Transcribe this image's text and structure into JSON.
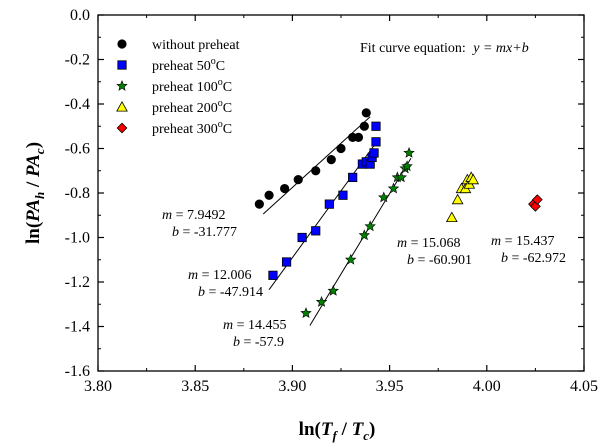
{
  "chart_data": {
    "type": "scatter",
    "xlim": [
      3.8,
      4.05
    ],
    "ylim": [
      -1.6,
      0.0
    ],
    "x_ticks": [
      "3.80",
      "3.85",
      "3.90",
      "3.95",
      "4.00",
      "4.05"
    ],
    "y_ticks": [
      "0.0",
      "-0.2",
      "-0.4",
      "-0.6",
      "-0.8",
      "-1.0",
      "-1.2",
      "-1.4",
      "-1.6"
    ],
    "equation_label": "Fit curve equation:",
    "equation_formula": "y = mx+b",
    "grid": false,
    "legend_position": "top-left",
    "series": [
      {
        "name": "without preheat",
        "marker": "circle",
        "color": "#000000",
        "points": [
          [
            3.883,
            -0.85
          ],
          [
            3.888,
            -0.81
          ],
          [
            3.896,
            -0.78
          ],
          [
            3.903,
            -0.74
          ],
          [
            3.912,
            -0.7
          ],
          [
            3.92,
            -0.65
          ],
          [
            3.925,
            -0.6
          ],
          [
            3.931,
            -0.55
          ],
          [
            3.934,
            -0.55
          ],
          [
            3.937,
            -0.5
          ],
          [
            3.938,
            -0.44
          ]
        ],
        "fit": {
          "m": "7.9492",
          "b": "-31.777",
          "x_range": [
            3.885,
            3.94
          ]
        }
      },
      {
        "name": "preheat 50°C",
        "marker": "square",
        "color": "#0000ff",
        "points": [
          [
            3.89,
            -1.17
          ],
          [
            3.897,
            -1.11
          ],
          [
            3.905,
            -1.0
          ],
          [
            3.912,
            -0.97
          ],
          [
            3.919,
            -0.85
          ],
          [
            3.926,
            -0.81
          ],
          [
            3.931,
            -0.73
          ],
          [
            3.936,
            -0.67
          ],
          [
            3.938,
            -0.66
          ],
          [
            3.94,
            -0.67
          ],
          [
            3.941,
            -0.64
          ],
          [
            3.942,
            -0.62
          ],
          [
            3.943,
            -0.57
          ],
          [
            3.943,
            -0.5
          ]
        ],
        "fit": {
          "m": "12.006",
          "b": "-47.914",
          "x_range": [
            3.888,
            3.944
          ]
        }
      },
      {
        "name": "preheat 100°C",
        "marker": "star",
        "color": "#008000",
        "points": [
          [
            3.907,
            -1.34
          ],
          [
            3.915,
            -1.29
          ],
          [
            3.921,
            -1.24
          ],
          [
            3.93,
            -1.1
          ],
          [
            3.937,
            -0.99
          ],
          [
            3.94,
            -0.95
          ],
          [
            3.947,
            -0.82
          ],
          [
            3.952,
            -0.78
          ],
          [
            3.954,
            -0.73
          ],
          [
            3.956,
            -0.73
          ],
          [
            3.958,
            -0.69
          ],
          [
            3.959,
            -0.68
          ],
          [
            3.96,
            -0.62
          ]
        ],
        "fit": {
          "m": "14.455",
          "b": "-57.9",
          "x_range": [
            3.909,
            3.961
          ]
        }
      },
      {
        "name": "preheat 200°C",
        "marker": "triangle",
        "color": "#ffff00",
        "points": [
          [
            3.982,
            -0.91
          ],
          [
            3.985,
            -0.83
          ],
          [
            3.987,
            -0.78
          ],
          [
            3.989,
            -0.78
          ],
          [
            3.99,
            -0.74
          ],
          [
            3.991,
            -0.76
          ],
          [
            3.992,
            -0.73
          ],
          [
            3.993,
            -0.74
          ]
        ],
        "fit": {
          "m": "15.068",
          "b": "-60.901",
          "x_range": null
        }
      },
      {
        "name": "preheat 300°C",
        "marker": "diamond",
        "color": "#ff0000",
        "points": [
          [
            4.024,
            -0.85
          ],
          [
            4.025,
            -0.86
          ],
          [
            4.026,
            -0.83
          ]
        ],
        "fit": {
          "m": "15.437",
          "b": "-62.972",
          "x_range": null
        }
      }
    ]
  }
}
